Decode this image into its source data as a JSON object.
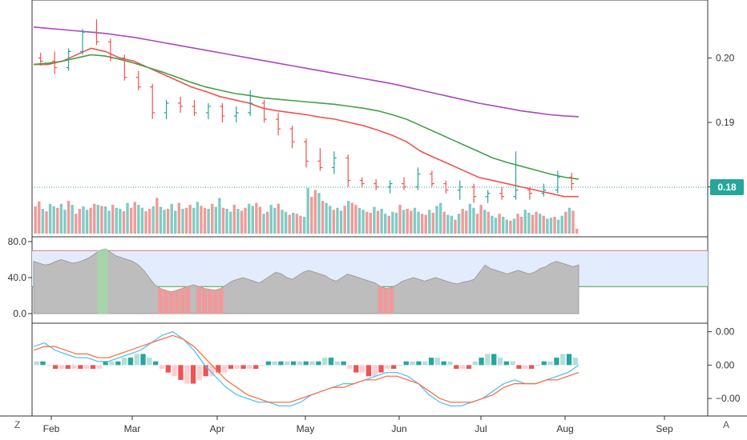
{
  "chart_data": [
    {
      "type": "ohlc",
      "x_ticks": [
        "Feb",
        "Mar",
        "Apr",
        "May",
        "Jun",
        "Jul",
        "Aug",
        "Sep"
      ],
      "y_ticks": [
        "0.20",
        "0.19",
        "0.18"
      ],
      "ylim": [
        0.173,
        0.208
      ],
      "last_price": "0.18",
      "series": [
        {
          "name": "",
          "color": "#ef5350",
          "values": [
            0.199,
            0.199,
            0.1995,
            0.2005,
            0.2015,
            0.201,
            0.2,
            0.1995,
            0.1985,
            0.1975,
            0.1965,
            0.1955,
            0.1948,
            0.194,
            0.1935,
            0.193,
            0.1922,
            0.1918,
            0.1915,
            0.1912,
            0.1908,
            0.1905,
            0.19,
            0.1895,
            0.1888,
            0.188,
            0.187,
            0.1855,
            0.1845,
            0.1835,
            0.1825,
            0.1815,
            0.181,
            0.1805,
            0.18,
            0.1795,
            0.179,
            0.1785,
            0.1785
          ]
        },
        {
          "name": "",
          "color": "#43a047",
          "values": [
            0.199,
            0.1992,
            0.1995,
            0.2,
            0.2005,
            0.2003,
            0.1998,
            0.1992,
            0.1985,
            0.1978,
            0.197,
            0.1962,
            0.1955,
            0.195,
            0.1945,
            0.1942,
            0.1938,
            0.1936,
            0.1934,
            0.1932,
            0.193,
            0.1928,
            0.1925,
            0.1922,
            0.1918,
            0.1912,
            0.1905,
            0.1895,
            0.1885,
            0.1875,
            0.1865,
            0.1855,
            0.1845,
            0.1838,
            0.1832,
            0.1826,
            0.182,
            0.1815,
            0.1812
          ]
        },
        {
          "name": "",
          "color": "#ab47bc",
          "values": [
            0.2048,
            0.2046,
            0.2044,
            0.2042,
            0.204,
            0.2038,
            0.2035,
            0.2032,
            0.2028,
            0.2024,
            0.202,
            0.2016,
            0.2012,
            0.2008,
            0.2004,
            0.2,
            0.1996,
            0.1992,
            0.1988,
            0.1984,
            0.198,
            0.1976,
            0.1972,
            0.1968,
            0.1964,
            0.196,
            0.1955,
            0.195,
            0.1945,
            0.194,
            0.1935,
            0.193,
            0.1926,
            0.1922,
            0.1918,
            0.1915,
            0.1912,
            0.191,
            0.1909
          ]
        }
      ],
      "bars": [
        {
          "o": 0.2,
          "h": 0.2008,
          "l": 0.1988,
          "c": 0.1995
        },
        {
          "o": 0.1995,
          "h": 0.201,
          "l": 0.1975,
          "c": 0.1985
        },
        {
          "o": 0.1985,
          "h": 0.2015,
          "l": 0.198,
          "c": 0.201
        },
        {
          "o": 0.201,
          "h": 0.2045,
          "l": 0.2005,
          "c": 0.204
        },
        {
          "o": 0.204,
          "h": 0.206,
          "l": 0.202,
          "c": 0.2025
        },
        {
          "o": 0.2025,
          "h": 0.203,
          "l": 0.1995,
          "c": 0.2
        },
        {
          "o": 0.2,
          "h": 0.2005,
          "l": 0.1965,
          "c": 0.197
        },
        {
          "o": 0.197,
          "h": 0.198,
          "l": 0.195,
          "c": 0.1955
        },
        {
          "o": 0.1955,
          "h": 0.196,
          "l": 0.1905,
          "c": 0.1915
        },
        {
          "o": 0.1915,
          "h": 0.1935,
          "l": 0.1905,
          "c": 0.193
        },
        {
          "o": 0.193,
          "h": 0.194,
          "l": 0.1915,
          "c": 0.1925
        },
        {
          "o": 0.1925,
          "h": 0.1935,
          "l": 0.191,
          "c": 0.1915
        },
        {
          "o": 0.1915,
          "h": 0.193,
          "l": 0.1905,
          "c": 0.1925
        },
        {
          "o": 0.1925,
          "h": 0.193,
          "l": 0.19,
          "c": 0.191
        },
        {
          "o": 0.191,
          "h": 0.1925,
          "l": 0.19,
          "c": 0.1915
        },
        {
          "o": 0.1915,
          "h": 0.195,
          "l": 0.191,
          "c": 0.193
        },
        {
          "o": 0.193,
          "h": 0.1935,
          "l": 0.19,
          "c": 0.1905
        },
        {
          "o": 0.1905,
          "h": 0.1915,
          "l": 0.188,
          "c": 0.189
        },
        {
          "o": 0.189,
          "h": 0.1895,
          "l": 0.186,
          "c": 0.187
        },
        {
          "o": 0.187,
          "h": 0.1875,
          "l": 0.183,
          "c": 0.184
        },
        {
          "o": 0.184,
          "h": 0.186,
          "l": 0.1825,
          "c": 0.183
        },
        {
          "o": 0.183,
          "h": 0.1855,
          "l": 0.182,
          "c": 0.1845
        },
        {
          "o": 0.1845,
          "h": 0.185,
          "l": 0.18,
          "c": 0.181
        },
        {
          "o": 0.181,
          "h": 0.1815,
          "l": 0.18,
          "c": 0.1805
        },
        {
          "o": 0.1805,
          "h": 0.1812,
          "l": 0.1795,
          "c": 0.18
        },
        {
          "o": 0.18,
          "h": 0.181,
          "l": 0.179,
          "c": 0.1805
        },
        {
          "o": 0.1805,
          "h": 0.1815,
          "l": 0.1795,
          "c": 0.18
        },
        {
          "o": 0.18,
          "h": 0.183,
          "l": 0.1795,
          "c": 0.182
        },
        {
          "o": 0.182,
          "h": 0.1825,
          "l": 0.18,
          "c": 0.1805
        },
        {
          "o": 0.1805,
          "h": 0.181,
          "l": 0.179,
          "c": 0.1795
        },
        {
          "o": 0.1795,
          "h": 0.181,
          "l": 0.178,
          "c": 0.18
        },
        {
          "o": 0.18,
          "h": 0.1805,
          "l": 0.1775,
          "c": 0.1785
        },
        {
          "o": 0.1785,
          "h": 0.1795,
          "l": 0.1775,
          "c": 0.179
        },
        {
          "o": 0.179,
          "h": 0.18,
          "l": 0.178,
          "c": 0.1785
        },
        {
          "o": 0.1785,
          "h": 0.1855,
          "l": 0.178,
          "c": 0.1795
        },
        {
          "o": 0.1795,
          "h": 0.18,
          "l": 0.178,
          "c": 0.179
        },
        {
          "o": 0.179,
          "h": 0.1805,
          "l": 0.1785,
          "c": 0.1795
        },
        {
          "o": 0.1795,
          "h": 0.1825,
          "l": 0.179,
          "c": 0.1815
        },
        {
          "o": 0.1815,
          "h": 0.1822,
          "l": 0.1795,
          "c": 0.1805
        }
      ],
      "volume": [
        0.55,
        0.65,
        0.5,
        0.45,
        0.6,
        0.55,
        0.52,
        0.6,
        0.48,
        0.66,
        0.58,
        0.4,
        0.5,
        0.55,
        0.48,
        0.52,
        0.6,
        0.58,
        0.56,
        0.55,
        0.46,
        0.58,
        0.52,
        0.5,
        0.45,
        0.62,
        0.52,
        0.64,
        0.58,
        0.52,
        0.45,
        0.5,
        0.55,
        0.72,
        0.54,
        0.48,
        0.5,
        0.6,
        0.46,
        0.62,
        0.5,
        0.52,
        0.58,
        0.52,
        0.64,
        0.56,
        0.52,
        0.5,
        0.6,
        0.54,
        0.72,
        0.52,
        0.5,
        0.44,
        0.58,
        0.5,
        0.46,
        0.52,
        0.6,
        0.56,
        0.62,
        0.54,
        0.4,
        0.44,
        0.58,
        0.52,
        0.6,
        0.48,
        0.44,
        0.38,
        0.42,
        0.4,
        0.36,
        0.34,
        0.92,
        0.74,
        0.88,
        0.82,
        0.66,
        0.62,
        0.56,
        0.48,
        0.52,
        0.46,
        0.56,
        0.66,
        0.62,
        0.58,
        0.52,
        0.48,
        0.44,
        0.42,
        0.54,
        0.46,
        0.5,
        0.4,
        0.36,
        0.44,
        0.42,
        0.58,
        0.48,
        0.5,
        0.46,
        0.52,
        0.44,
        0.4,
        0.38,
        0.48,
        0.42,
        0.56,
        0.62,
        0.44,
        0.38,
        0.36,
        0.28,
        0.4,
        0.5,
        0.46,
        0.6,
        0.52,
        0.4,
        0.58,
        0.48,
        0.44,
        0.36,
        0.32,
        0.4,
        0.34,
        0.28,
        0.26,
        0.3,
        0.4,
        0.34,
        0.48,
        0.42,
        0.38,
        0.44,
        0.4,
        0.36,
        0.3,
        0.32,
        0.34,
        0.28,
        0.36,
        0.44,
        0.52,
        0.46,
        0.1
      ]
    },
    {
      "type": "area",
      "y_ticks": [
        "80.0",
        "40.0",
        "0.0"
      ],
      "ylim": [
        0,
        80
      ],
      "upper_line": 70,
      "lower_line": 30,
      "values": [
        58,
        56,
        54,
        55,
        58,
        60,
        58,
        56,
        57,
        59,
        62,
        66,
        70,
        72,
        68,
        64,
        62,
        60,
        58,
        54,
        48,
        40,
        32,
        28,
        26,
        24,
        26,
        28,
        30,
        32,
        30,
        28,
        27,
        26,
        28,
        32,
        36,
        38,
        40,
        38,
        36,
        34,
        38,
        42,
        46,
        44,
        40,
        38,
        42,
        46,
        48,
        46,
        44,
        42,
        38,
        36,
        40,
        44,
        42,
        40,
        38,
        36,
        34,
        30,
        28,
        29,
        32,
        36,
        38,
        40,
        38,
        36,
        38,
        40,
        38,
        36,
        34,
        33,
        35,
        36,
        38,
        46,
        54,
        50,
        48,
        46,
        44,
        46,
        48,
        46,
        44,
        46,
        50,
        52,
        56,
        58,
        56,
        54,
        52,
        54
      ]
    },
    {
      "type": "line+histogram",
      "y_ticks": [
        "0.00",
        "0.00",
        "−0.00"
      ],
      "ylim": [
        -0.0012,
        0.001
      ],
      "series": [
        {
          "name": "",
          "color": "#4fc3f7",
          "values": [
            0.0005,
            0.0006,
            0.0004,
            0.0003,
            0.0002,
            0.0002,
            0.0001,
            0.0001,
            0.0002,
            0.0003,
            0.0004,
            0.0006,
            0.0008,
            0.0009,
            0.0007,
            0.0004,
            0.0,
            -0.0003,
            -0.0006,
            -0.0008,
            -0.0009,
            -0.001,
            -0.001,
            -0.0011,
            -0.0011,
            -0.001,
            -0.0008,
            -0.0007,
            -0.0006,
            -0.0005,
            -0.0005,
            -0.0004,
            -0.0003,
            -0.0002,
            -0.0002,
            -0.0003,
            -0.0005,
            -0.0008,
            -0.001,
            -0.0011,
            -0.0011,
            -0.001,
            -0.0009,
            -0.0007,
            -0.0005,
            -0.0004,
            -0.0005,
            -0.0005,
            -0.0004,
            -0.0003,
            -0.0002,
            0.0
          ]
        },
        {
          "name": "",
          "color": "#ff7043",
          "values": [
            0.0004,
            0.0005,
            0.0005,
            0.0004,
            0.0003,
            0.0003,
            0.0002,
            0.0002,
            0.0003,
            0.0004,
            0.0005,
            0.0006,
            0.0007,
            0.0008,
            0.0007,
            0.0005,
            0.0002,
            -0.0001,
            -0.0004,
            -0.0006,
            -0.0008,
            -0.0009,
            -0.001,
            -0.001,
            -0.001,
            -0.0009,
            -0.0008,
            -0.0007,
            -0.0006,
            -0.0006,
            -0.0005,
            -0.0004,
            -0.0004,
            -0.0003,
            -0.0003,
            -0.0004,
            -0.0005,
            -0.0007,
            -0.0009,
            -0.001,
            -0.001,
            -0.001,
            -0.0009,
            -0.0008,
            -0.0006,
            -0.0005,
            -0.0005,
            -0.0005,
            -0.0004,
            -0.0004,
            -0.0003,
            -0.0002
          ]
        }
      ],
      "histogram": [
        0.0001,
        0.0001,
        0.0,
        -0.0001,
        -0.0001,
        -0.0001,
        -0.0001,
        -0.0001,
        -0.0001,
        -0.0001,
        -0.0001,
        0.0001,
        0.0001,
        0.0001,
        0.0002,
        0.0002,
        0.0003,
        0.0003,
        0.0002,
        0.0001,
        -0.0001,
        -0.0002,
        -0.0003,
        -0.0004,
        -0.0005,
        -0.0005,
        -0.0004,
        -0.0003,
        -0.0003,
        -0.0002,
        -0.0002,
        -0.0001,
        -0.0001,
        -0.0001,
        -0.0001,
        -0.0001,
        0.0,
        0.0001,
        0.0001,
        0.0001,
        0.0001,
        0.0001,
        0.0001,
        0.0001,
        0.0001,
        0.0001,
        0.0002,
        0.0002,
        0.0001,
        0.0001,
        -0.0001,
        -0.0002,
        -0.0002,
        -0.0003,
        -0.0003,
        -0.0002,
        -0.0001,
        -0.0001,
        0.0,
        0.0001,
        0.0001,
        0.0001,
        0.0001,
        0.0002,
        0.0002,
        0.0001,
        0.0001,
        -0.0001,
        -0.0001,
        -0.0001,
        0.0001,
        0.0002,
        0.0003,
        0.0003,
        0.0002,
        0.0001,
        0.0001,
        -0.0001,
        -0.0001,
        -0.0001,
        0.0,
        0.0001,
        0.0001,
        0.0002,
        0.0003,
        0.0003,
        0.0002
      ]
    }
  ],
  "ui": {
    "btn_z": "Z",
    "btn_a": "A"
  }
}
